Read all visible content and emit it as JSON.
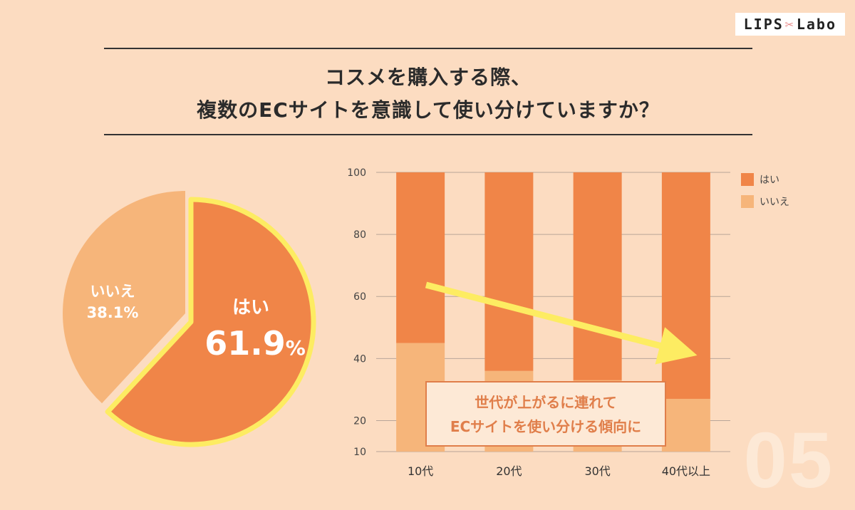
{
  "brand": {
    "name_left": "LIPS",
    "name_right": "Labo"
  },
  "title": {
    "line1": "コスメを購入する際、",
    "line2": "複数のECサイトを意識して使い分けていますか？"
  },
  "page_number": "05",
  "colors": {
    "background": "#fcdcc1",
    "yes": "#f08548",
    "no": "#f6b57a",
    "highlight": "#fdec62"
  },
  "chart_data": [
    {
      "type": "pie",
      "slices": [
        {
          "label": "はい",
          "value": 61.9,
          "display": "61.9",
          "unit": "%"
        },
        {
          "label": "いいえ",
          "value": 38.1,
          "display": "38.1%"
        }
      ]
    },
    {
      "type": "bar",
      "stacked": true,
      "categories": [
        "10代",
        "20代",
        "30代",
        "40代以上"
      ],
      "series": [
        {
          "name": "はい",
          "values": [
            55,
            64,
            67,
            73
          ]
        },
        {
          "name": "いいえ",
          "values": [
            45,
            36,
            33,
            27
          ]
        }
      ],
      "yticks": [
        100,
        80,
        60,
        40,
        20,
        10
      ],
      "ylim": [
        10,
        100
      ],
      "grid": true,
      "legend": "top-right",
      "annotation": {
        "line1": "世代が上がるに連れて",
        "line2": "ECサイトを使い分ける傾向に"
      }
    }
  ]
}
